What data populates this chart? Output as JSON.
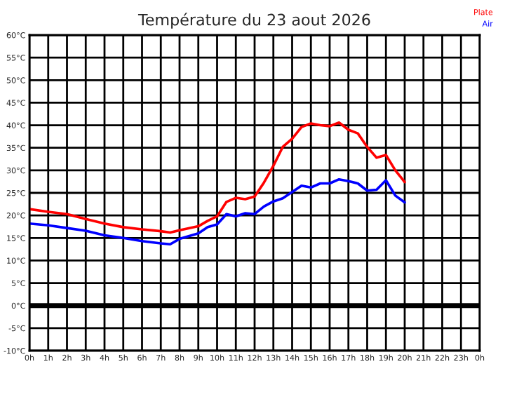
{
  "chart_data": {
    "type": "line",
    "title": "Température du 23 aout 2026",
    "series": [
      {
        "name": "Plate",
        "color": "#ff0000",
        "x": [
          "2026-08-23T00:00",
          "2026-08-23T01:00",
          "2026-08-23T02:00",
          "2026-08-23T03:00",
          "2026-08-23T04:00",
          "2026-08-23T05:00",
          "2026-08-23T06:00",
          "2026-08-23T07:00",
          "2026-08-23T07:30",
          "2026-08-23T08:00",
          "2026-08-23T09:00",
          "2026-08-23T09:30",
          "2026-08-23T10:00",
          "2026-08-23T10:30",
          "2026-08-23T11:00",
          "2026-08-23T11:30",
          "2026-08-23T12:00",
          "2026-08-23T12:30",
          "2026-08-23T13:00",
          "2026-08-23T13:30",
          "2026-08-23T14:00",
          "2026-08-23T14:30",
          "2026-08-23T15:00",
          "2026-08-23T15:30",
          "2026-08-23T16:00",
          "2026-08-23T16:30",
          "2026-08-23T17:00",
          "2026-08-23T17:30",
          "2026-08-23T18:00",
          "2026-08-23T18:30",
          "2026-08-23T19:00",
          "2026-08-23T19:30",
          "2026-08-23T20:00"
        ],
        "values": [
          21.4,
          20.8,
          20.3,
          19.2,
          18.2,
          17.4,
          16.9,
          16.5,
          16.2,
          16.7,
          17.6,
          18.8,
          19.8,
          23,
          23.9,
          23.6,
          24.2,
          27.3,
          31,
          35.2,
          37,
          39.6,
          40.4,
          40,
          39.8,
          40.6,
          39,
          38.2,
          35.2,
          32.8,
          33.4,
          30,
          27.4
        ]
      },
      {
        "name": "Air",
        "color": "#0000ff",
        "x": [
          "2026-08-23T00:00",
          "2026-08-23T01:00",
          "2026-08-23T02:00",
          "2026-08-23T03:00",
          "2026-08-23T04:00",
          "2026-08-23T05:00",
          "2026-08-23T06:00",
          "2026-08-23T07:00",
          "2026-08-23T07:30",
          "2026-08-23T08:00",
          "2026-08-23T09:00",
          "2026-08-23T09:30",
          "2026-08-23T10:00",
          "2026-08-23T10:30",
          "2026-08-23T11:00",
          "2026-08-23T11:30",
          "2026-08-23T12:00",
          "2026-08-23T12:30",
          "2026-08-23T13:00",
          "2026-08-23T13:30",
          "2026-08-23T14:00",
          "2026-08-23T14:30",
          "2026-08-23T15:00",
          "2026-08-23T15:30",
          "2026-08-23T16:00",
          "2026-08-23T16:30",
          "2026-08-23T17:00",
          "2026-08-23T17:30",
          "2026-08-23T18:00",
          "2026-08-23T18:30",
          "2026-08-23T19:00",
          "2026-08-23T19:30",
          "2026-08-23T20:00"
        ],
        "values": [
          18.2,
          17.8,
          17.2,
          16.6,
          15.6,
          15,
          14.3,
          13.8,
          13.6,
          14.8,
          16,
          17.4,
          18,
          20.3,
          19.8,
          20.5,
          20.3,
          22,
          23.1,
          23.8,
          25.2,
          26.6,
          26.2,
          27.1,
          27.1,
          28,
          27.6,
          27.1,
          25.5,
          25.7,
          27.8,
          24.4,
          22.9
        ]
      }
    ],
    "xlim": [
      "2026-08-23T00:00",
      "2026-08-24T00:00"
    ],
    "xticks": [
      {
        "value": "2026-08-23T00:00",
        "label": "0h"
      },
      {
        "value": "2026-08-23T01:00",
        "label": "1h"
      },
      {
        "value": "2026-08-23T02:00",
        "label": "2h"
      },
      {
        "value": "2026-08-23T03:00",
        "label": "3h"
      },
      {
        "value": "2026-08-23T04:00",
        "label": "4h"
      },
      {
        "value": "2026-08-23T05:00",
        "label": "5h"
      },
      {
        "value": "2026-08-23T06:00",
        "label": "6h"
      },
      {
        "value": "2026-08-23T07:00",
        "label": "7h"
      },
      {
        "value": "2026-08-23T08:00",
        "label": "8h"
      },
      {
        "value": "2026-08-23T09:00",
        "label": "9h"
      },
      {
        "value": "2026-08-23T10:00",
        "label": "10h"
      },
      {
        "value": "2026-08-23T11:00",
        "label": "11h"
      },
      {
        "value": "2026-08-23T12:00",
        "label": "12h"
      },
      {
        "value": "2026-08-23T13:00",
        "label": "13h"
      },
      {
        "value": "2026-08-23T14:00",
        "label": "14h"
      },
      {
        "value": "2026-08-23T15:00",
        "label": "15h"
      },
      {
        "value": "2026-08-23T16:00",
        "label": "16h"
      },
      {
        "value": "2026-08-23T17:00",
        "label": "17h"
      },
      {
        "value": "2026-08-23T18:00",
        "label": "18h"
      },
      {
        "value": "2026-08-23T19:00",
        "label": "19h"
      },
      {
        "value": "2026-08-23T20:00",
        "label": "20h"
      },
      {
        "value": "2026-08-23T21:00",
        "label": "21h"
      },
      {
        "value": "2026-08-23T22:00",
        "label": "22h"
      },
      {
        "value": "2026-08-23T23:00",
        "label": "23h"
      },
      {
        "value": "2026-08-24T00:00",
        "label": "0h"
      }
    ],
    "ylim": [
      -10,
      60
    ],
    "yticks": [
      {
        "value": -10,
        "label": "-10°C"
      },
      {
        "value": -5,
        "label": "-5°C"
      },
      {
        "value": 0,
        "label": "0°C"
      },
      {
        "value": 5,
        "label": "5°C"
      },
      {
        "value": 10,
        "label": "10°C"
      },
      {
        "value": 15,
        "label": "15°C"
      },
      {
        "value": 20,
        "label": "20°C"
      },
      {
        "value": 25,
        "label": "25°C"
      },
      {
        "value": 30,
        "label": "30°C"
      },
      {
        "value": 35,
        "label": "35°C"
      },
      {
        "value": 40,
        "label": "40°C"
      },
      {
        "value": 45,
        "label": "45°C"
      },
      {
        "value": 50,
        "label": "50°C"
      },
      {
        "value": 55,
        "label": "55°C"
      },
      {
        "value": 60,
        "label": "60°C"
      }
    ],
    "ref_lines": [
      {
        "axis": "y",
        "value": 0,
        "color": "#000000"
      }
    ],
    "grid": true,
    "legend": "top right",
    "marker": "none",
    "line_style": "solid"
  }
}
